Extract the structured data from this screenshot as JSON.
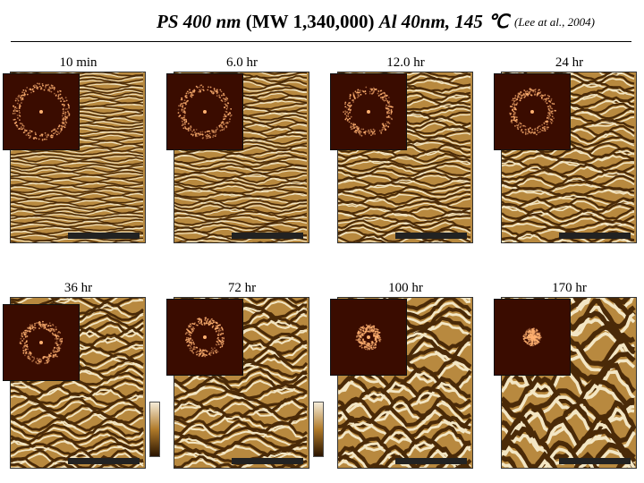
{
  "header": {
    "title_italic_1": "PS 400 nm",
    "title_plain": " (MW 1,340,000) ",
    "title_italic_2": "Al 40nm, 145 ℃",
    "citation": "(Lee at al., 2004)"
  },
  "panels": [
    {
      "time": "10 min"
    },
    {
      "time": "6.0 hr"
    },
    {
      "time": "12.0 hr"
    },
    {
      "time": "24 hr"
    },
    {
      "time": "36 hr"
    },
    {
      "time": "72 hr"
    },
    {
      "time": "100 hr"
    },
    {
      "time": "170 hr"
    }
  ],
  "colors": {
    "afm_dark": "#4a2a08",
    "afm_mid": "#b8893f",
    "afm_light": "#f3e6c4",
    "fft_bg": "#3a0c00",
    "fft_ring": "#ffb070"
  }
}
